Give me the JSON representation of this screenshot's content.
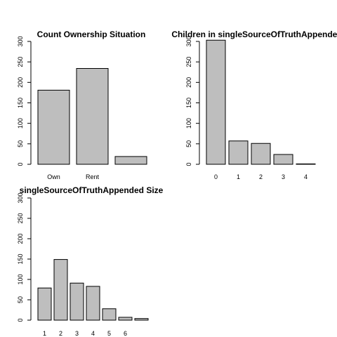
{
  "chart_data": [
    {
      "type": "bar",
      "title": "Count Ownership Situation",
      "categories": [
        "Own",
        "Rent",
        ""
      ],
      "values": [
        181,
        234,
        19
      ],
      "ylim": [
        0,
        300
      ],
      "yticks": [
        "0",
        "50",
        "100",
        "150",
        "200",
        "250",
        "300"
      ],
      "xlabel": "",
      "ylabel": "",
      "grid": false
    },
    {
      "type": "bar",
      "title": "Children in singleSourceOfTruthAppended",
      "categories": [
        "0",
        "1",
        "2",
        "3",
        "4"
      ],
      "values": [
        303,
        57,
        51,
        24,
        1
      ],
      "ylim": [
        0,
        300
      ],
      "yticks": [
        "0",
        "50",
        "100",
        "150",
        "200",
        "250",
        "300"
      ],
      "xlabel": "",
      "ylabel": "",
      "grid": false
    },
    {
      "type": "bar",
      "title": "singleSourceOfTruthAppended Size",
      "categories": [
        "1",
        "2",
        "3",
        "4",
        "5",
        "6",
        ""
      ],
      "values": [
        79,
        149,
        91,
        83,
        28,
        7,
        4
      ],
      "ylim": [
        0,
        300
      ],
      "yticks": [
        "0",
        "50",
        "100",
        "150",
        "200",
        "250",
        "300"
      ],
      "xlabel": "",
      "ylabel": "",
      "grid": false
    }
  ]
}
